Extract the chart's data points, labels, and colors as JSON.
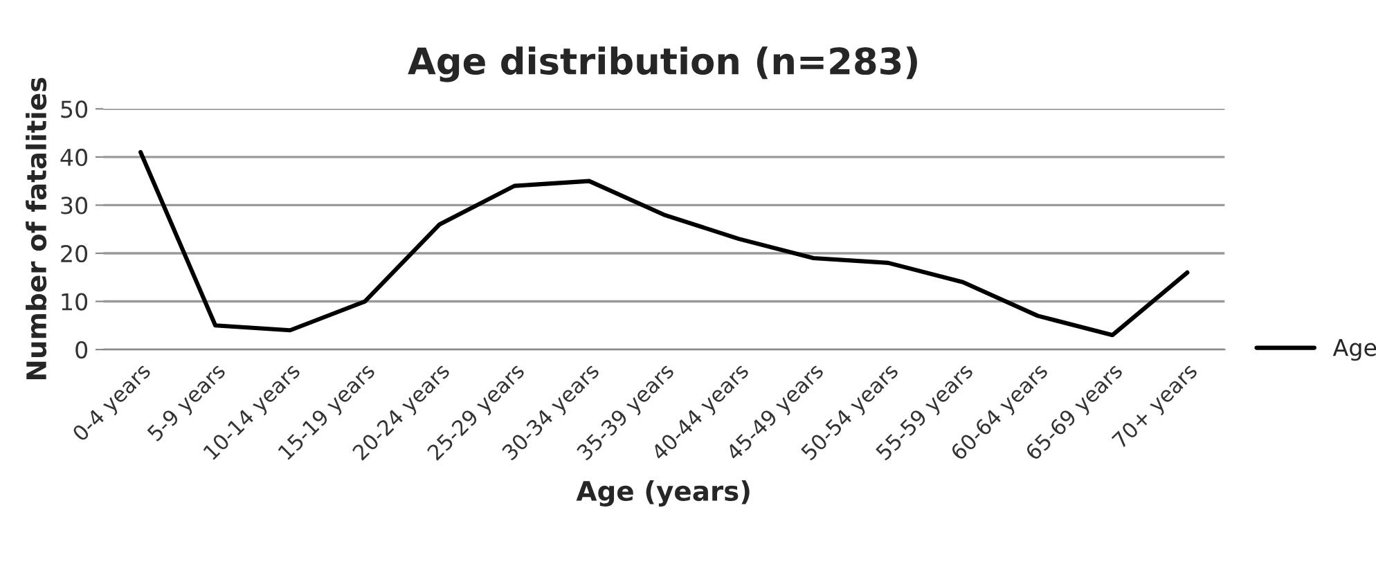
{
  "chart_data": {
    "type": "line",
    "title": "Age distribution (n=283)",
    "xlabel": "Age (years)",
    "ylabel": "Number of fatalities",
    "categories": [
      "0-4 years",
      "5-9 years",
      "10-14 years",
      "15-19 years",
      "20-24 years",
      "25-29 years",
      "30-34 years",
      "35-39 years",
      "40-44 years",
      "45-49 years",
      "50-54 years",
      "55-59 years",
      "60-64 years",
      "65-69 years",
      "70+ years"
    ],
    "series": [
      {
        "name": "Age",
        "color": "#000000",
        "values": [
          41,
          5,
          4,
          10,
          26,
          34,
          35,
          28,
          23,
          19,
          18,
          14,
          7,
          3,
          16
        ]
      }
    ],
    "ylim": [
      0,
      50
    ],
    "yticks": [
      0,
      10,
      20,
      30,
      40,
      50
    ],
    "grid": "y",
    "legend": "right",
    "marker": "none",
    "line_style": "solid"
  }
}
